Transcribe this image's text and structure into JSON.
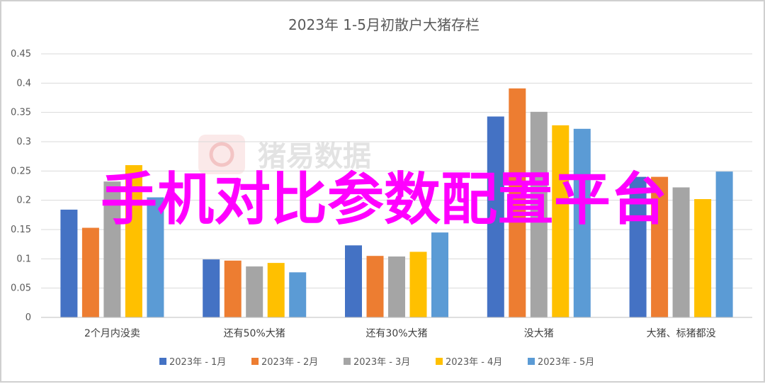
{
  "overlay_text": "手机对比参数配置平台",
  "watermark": {
    "text": "猪易数据"
  },
  "colors": {
    "series": [
      "#4472c4",
      "#ed7d31",
      "#a5a5a5",
      "#ffc000",
      "#5b9bd5"
    ],
    "overlay": "#ff00ff",
    "grid": "#d9d9d9",
    "text": "#595959"
  },
  "chart_data": {
    "type": "bar",
    "title": "2023年 1-5月初散户大猪存栏",
    "xlabel": "",
    "ylabel": "",
    "ylim": [
      0,
      0.45
    ],
    "yticks": [
      "0",
      "0.05",
      "0.1",
      "0.15",
      "0.2",
      "0.25",
      "0.3",
      "0.35",
      "0.4",
      "0.45"
    ],
    "grid": "horizontal",
    "legend_position": "bottom",
    "categories": [
      "2个月内没卖",
      "还有50%大猪",
      "还有30%大猪",
      "没大猪",
      "大猪、标猪都没"
    ],
    "series": [
      {
        "name": "2023年 - 1月",
        "values": [
          0.184,
          0.099,
          0.123,
          0.343,
          0.24
        ]
      },
      {
        "name": "2023年 - 2月",
        "values": [
          0.153,
          0.097,
          0.105,
          0.391,
          0.24
        ]
      },
      {
        "name": "2023年 - 3月",
        "values": [
          0.232,
          0.087,
          0.104,
          0.351,
          0.222
        ]
      },
      {
        "name": "2023年 - 4月",
        "values": [
          0.26,
          0.093,
          0.112,
          0.328,
          0.202
        ]
      },
      {
        "name": "2023年 - 5月",
        "values": [
          0.205,
          0.077,
          0.145,
          0.322,
          0.249
        ]
      }
    ]
  }
}
